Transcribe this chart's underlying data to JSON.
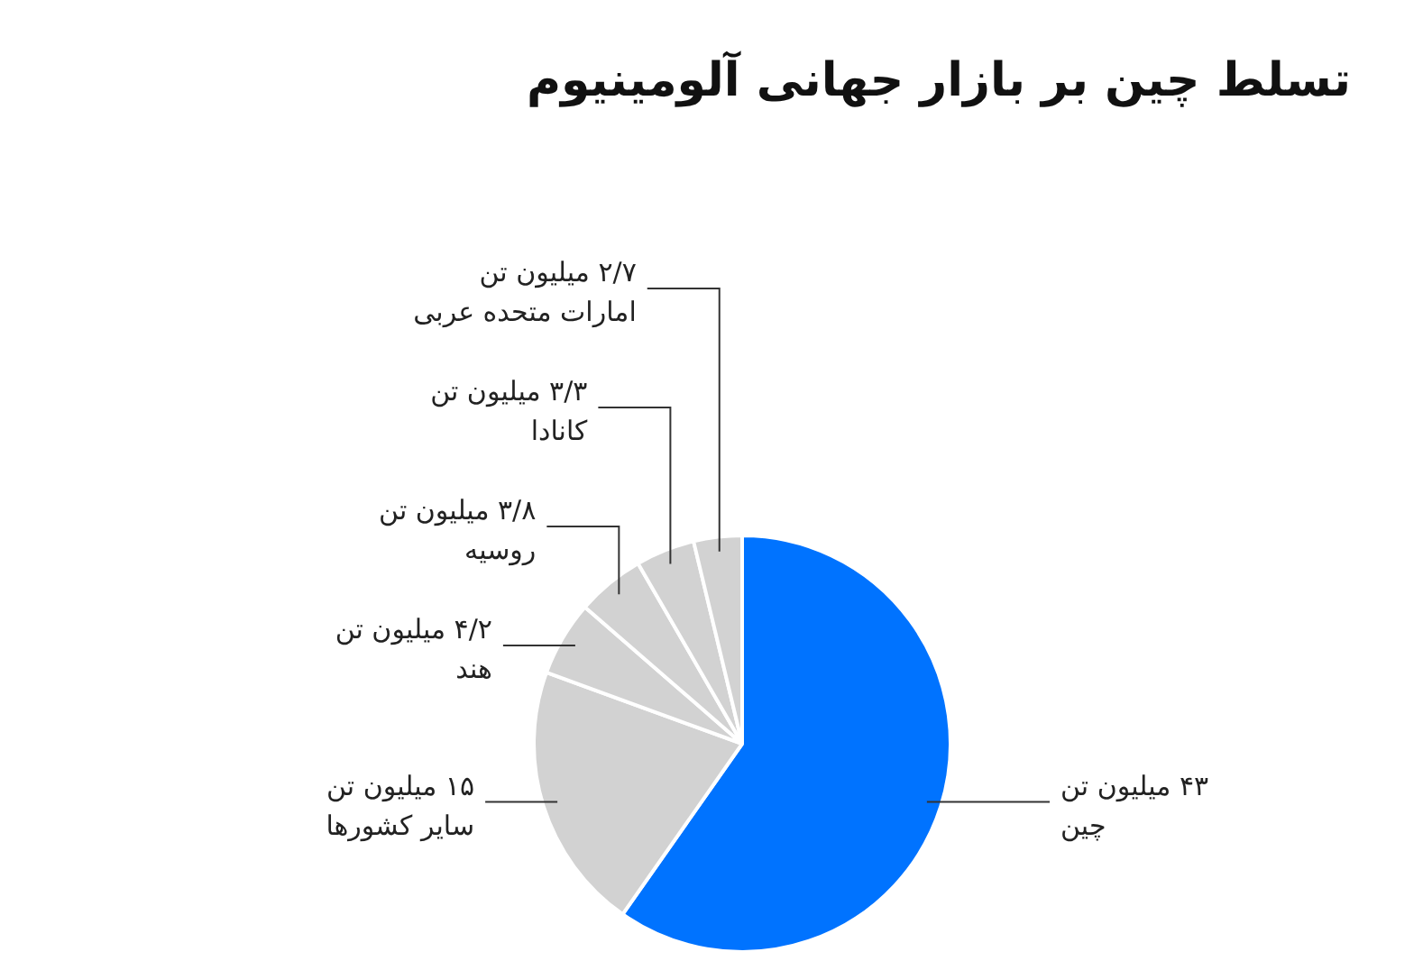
{
  "chart_data": {
    "type": "pie",
    "title": "تسلط چین بر بازار جهانی آلومینیوم",
    "categories": [
      "چین",
      "سایر کشورها",
      "هند",
      "روسیه",
      "کانادا",
      "امارات متحده عربی"
    ],
    "values": [
      43,
      15,
      4.2,
      3.8,
      3.3,
      2.7
    ],
    "colors": [
      "#0073ff",
      "#d2d2d2",
      "#d2d2d2",
      "#d2d2d2",
      "#d2d2d2",
      "#d2d2d2"
    ],
    "value_labels": [
      "۴۳ میلیون تن",
      "۱۵ میلیون تن",
      "۴/۲ میلیون تن",
      "۳/۸ میلیون تن",
      "۳/۳ میلیون تن",
      "۲/۷ میلیون تن"
    ]
  }
}
